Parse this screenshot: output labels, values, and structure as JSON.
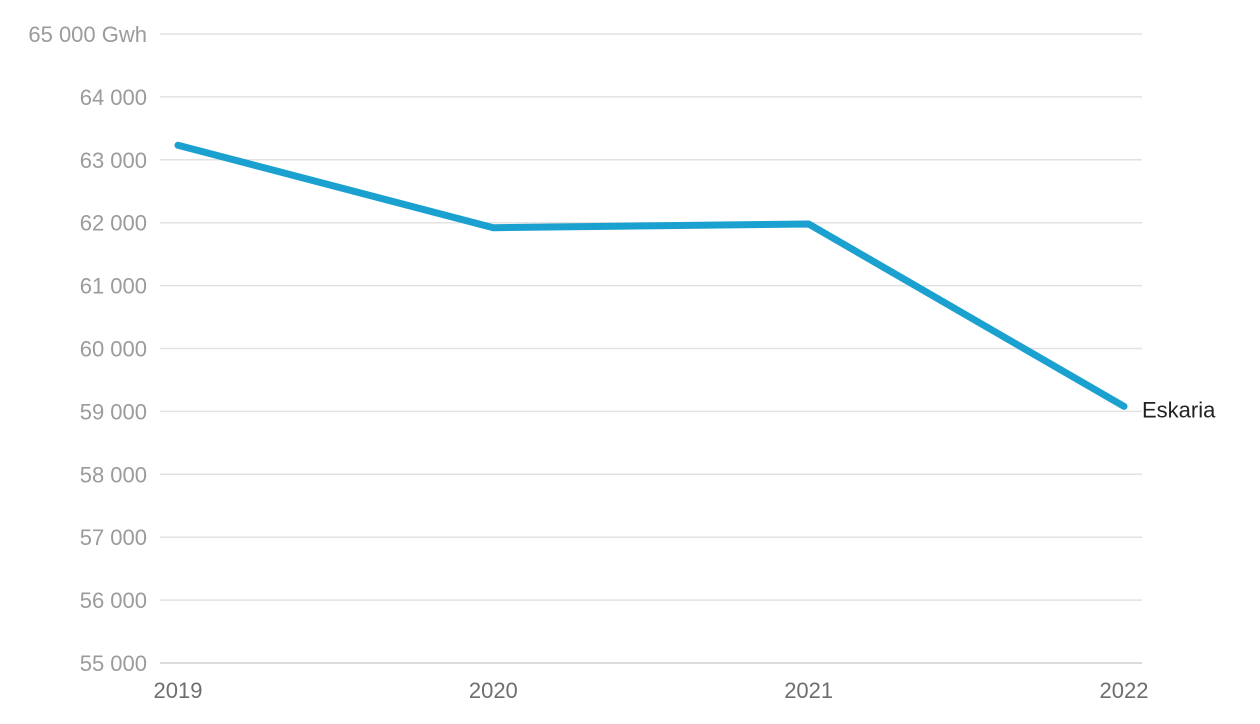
{
  "chart_data": {
    "type": "line",
    "title": "",
    "xlabel": "",
    "ylabel": "",
    "categories": [
      "2019",
      "2020",
      "2021",
      "2022"
    ],
    "ylim": [
      55000,
      65000
    ],
    "y_ticks": [
      {
        "value": 65000,
        "label": "65 000 Gwh"
      },
      {
        "value": 64000,
        "label": "64 000"
      },
      {
        "value": 63000,
        "label": "63 000"
      },
      {
        "value": 62000,
        "label": "62 000"
      },
      {
        "value": 61000,
        "label": "61 000"
      },
      {
        "value": 60000,
        "label": "60 000"
      },
      {
        "value": 59000,
        "label": "59 000"
      },
      {
        "value": 58000,
        "label": "58 000"
      },
      {
        "value": 57000,
        "label": "57 000"
      },
      {
        "value": 56000,
        "label": "56 000"
      },
      {
        "value": 55000,
        "label": "55 000"
      }
    ],
    "series": [
      {
        "name": "Eskaria",
        "values": [
          63230,
          61920,
          61980,
          59080
        ],
        "color": "#1aa1cf"
      }
    ],
    "grid": true,
    "legend": "end-of-line label"
  }
}
